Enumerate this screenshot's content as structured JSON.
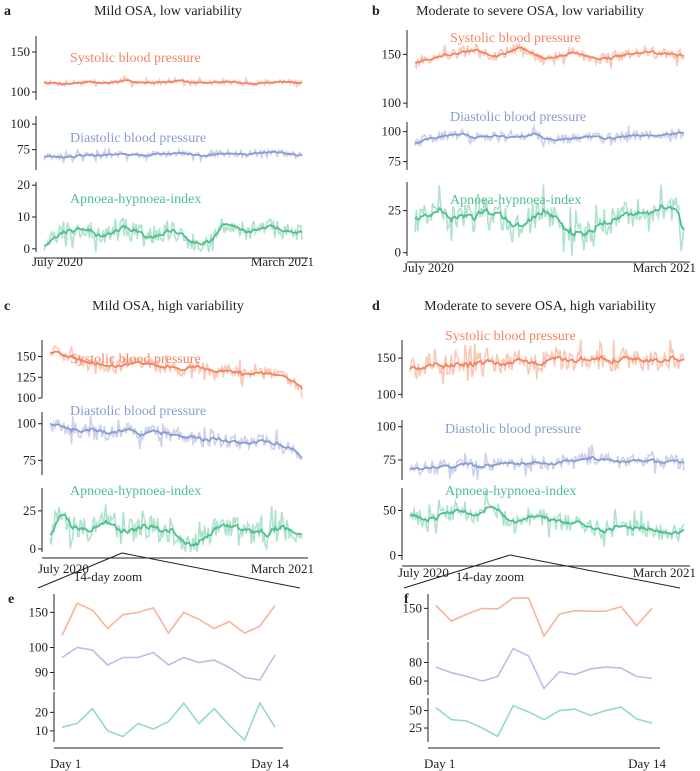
{
  "colors": {
    "sbp": "#f4845f",
    "dbp": "#8b9bd1",
    "ahi": "#4fc08d",
    "sbp_light": "#f7b49a",
    "dbp_light": "#b7c0e3",
    "ahi_light": "#94dcb6"
  },
  "series_labels": {
    "sbp": "Systolic blood pressure",
    "dbp": "Diastolic blood pressure",
    "ahi": "Apnoea-hypnoea-index"
  },
  "zoom_label": "14-day zoom",
  "chart_data": [
    {
      "id": "a",
      "type": "line",
      "title": "Mild OSA, low variability",
      "x_start": "July 2020",
      "x_end": "March 2021",
      "subplots": [
        {
          "series": "sbp",
          "ylim": [
            90,
            170
          ],
          "yticks": [
            100,
            150
          ],
          "mean": [
            112,
            111,
            110,
            112,
            113,
            111,
            112,
            114,
            113,
            111,
            112,
            113,
            115,
            112,
            111,
            112,
            113,
            112,
            110,
            111,
            112,
            113,
            112,
            111
          ],
          "noise": 3
        },
        {
          "series": "dbp",
          "ylim": [
            55,
            108
          ],
          "yticks": [
            75,
            100
          ],
          "mean": [
            68,
            68,
            67,
            69,
            70,
            69,
            70,
            71,
            70,
            69,
            71,
            71,
            72,
            70,
            69,
            70,
            71,
            71,
            70,
            72,
            73,
            72,
            70,
            69
          ],
          "noise": 3
        },
        {
          "series": "ahi",
          "ylim": [
            -1,
            21
          ],
          "yticks": [
            0,
            10,
            20
          ],
          "mean": [
            1,
            4,
            6,
            7,
            6,
            4,
            5,
            7,
            6,
            3,
            4,
            6,
            5,
            2,
            2,
            4,
            9,
            7,
            5,
            6,
            7,
            6,
            5,
            5
          ],
          "noise": 3
        }
      ]
    },
    {
      "id": "b",
      "type": "line",
      "title": "Moderate to severe OSA, low variability",
      "x_start": "July 2020",
      "x_end": "March 2021",
      "subplots": [
        {
          "series": "sbp",
          "ylim": [
            95,
            175
          ],
          "yticks": [
            100,
            150
          ],
          "mean": [
            142,
            145,
            148,
            150,
            152,
            155,
            150,
            148,
            153,
            158,
            150,
            146,
            148,
            152,
            150,
            147,
            145,
            148,
            150,
            152,
            153,
            150,
            151,
            148
          ],
          "noise": 6
        },
        {
          "series": "dbp",
          "ylim": [
            68,
            108
          ],
          "yticks": [
            75,
            100
          ],
          "mean": [
            90,
            94,
            96,
            97,
            98,
            95,
            96,
            97,
            94,
            96,
            98,
            95,
            93,
            94,
            95,
            96,
            94,
            95,
            96,
            97,
            96,
            98,
            99,
            100
          ],
          "noise": 4
        },
        {
          "series": "ahi",
          "ylim": [
            -2,
            42
          ],
          "yticks": [
            0,
            25
          ],
          "mean": [
            20,
            22,
            24,
            21,
            22,
            20,
            25,
            23,
            18,
            16,
            22,
            24,
            20,
            12,
            10,
            14,
            18,
            20,
            22,
            24,
            25,
            27,
            26,
            12
          ],
          "noise": 8
        }
      ]
    },
    {
      "id": "c",
      "type": "line",
      "title": "Mild OSA, high variability",
      "x_start": "July 2020",
      "x_end": "March 2021",
      "subplots": [
        {
          "series": "sbp",
          "ylim": [
            100,
            170
          ],
          "yticks": [
            100,
            125,
            150
          ],
          "mean": [
            155,
            152,
            148,
            145,
            142,
            140,
            138,
            140,
            142,
            140,
            138,
            137,
            135,
            140,
            135,
            133,
            132,
            130,
            128,
            130,
            128,
            125,
            120,
            112
          ],
          "noise": 8
        },
        {
          "series": "dbp",
          "ylim": [
            65,
            108
          ],
          "yticks": [
            75,
            100
          ],
          "mean": [
            100,
            98,
            96,
            95,
            96,
            94,
            95,
            96,
            93,
            94,
            95,
            92,
            90,
            92,
            88,
            90,
            88,
            87,
            86,
            88,
            87,
            85,
            83,
            75
          ],
          "noise": 5
        },
        {
          "series": "ahi",
          "ylim": [
            -2,
            40
          ],
          "yticks": [
            0,
            25
          ],
          "mean": [
            10,
            25,
            15,
            12,
            14,
            16,
            12,
            10,
            14,
            15,
            12,
            13,
            5,
            2,
            6,
            14,
            16,
            14,
            12,
            10,
            10,
            14,
            12,
            10
          ],
          "noise": 8
        }
      ]
    },
    {
      "id": "d",
      "type": "line",
      "title": "Moderate to severe OSA, high variability",
      "x_start": "July 2020",
      "x_end": "March 2021",
      "subplots": [
        {
          "series": "sbp",
          "ylim": [
            95,
            175
          ],
          "yticks": [
            100,
            150
          ],
          "mean": [
            135,
            138,
            140,
            142,
            140,
            138,
            145,
            143,
            140,
            148,
            145,
            143,
            150,
            147,
            145,
            150,
            148,
            145,
            150,
            148,
            147,
            146,
            150,
            145
          ],
          "noise": 14
        },
        {
          "series": "dbp",
          "ylim": [
            60,
            105
          ],
          "yticks": [
            75,
            100
          ],
          "mean": [
            68,
            69,
            70,
            70,
            71,
            72,
            70,
            71,
            73,
            72,
            74,
            73,
            72,
            75,
            74,
            76,
            75,
            74,
            73,
            75,
            74,
            73,
            74,
            73
          ],
          "noise": 5
        },
        {
          "series": "ahi",
          "ylim": [
            -5,
            75
          ],
          "yticks": [
            0,
            50
          ],
          "mean": [
            45,
            40,
            42,
            48,
            50,
            45,
            48,
            55,
            40,
            38,
            45,
            42,
            40,
            35,
            38,
            30,
            28,
            30,
            32,
            28,
            30,
            26,
            25,
            28
          ],
          "noise": 10
        }
      ]
    },
    {
      "id": "e",
      "type": "line",
      "title": "",
      "x_start": "Day 1",
      "x_end": "Day 14",
      "subplots": [
        {
          "series": "sbp_light",
          "ylim": [
            138,
            158
          ],
          "yticks": [
            150
          ],
          "values": [
            140,
            154,
            151,
            143,
            149,
            150,
            152,
            141,
            150,
            147,
            143,
            146,
            141,
            144,
            153
          ]
        },
        {
          "series": "dbp_light",
          "ylim": [
            83,
            103
          ],
          "yticks": [
            90,
            100
          ],
          "values": [
            96,
            100,
            99,
            93,
            96,
            96,
            98,
            93,
            96,
            94,
            95,
            92,
            88,
            87,
            97
          ]
        },
        {
          "series": "ahi_light",
          "ylim": [
            4,
            31
          ],
          "yticks": [
            10,
            20
          ],
          "values": [
            12,
            14,
            22,
            10,
            7,
            14,
            11,
            15,
            25,
            14,
            22,
            13,
            5,
            25,
            12
          ]
        }
      ]
    },
    {
      "id": "f",
      "type": "line",
      "title": "",
      "x_start": "Day 1",
      "x_end": "Day 14",
      "subplots": [
        {
          "series": "sbp_light",
          "ylim": [
            95,
            175
          ],
          "yticks": [
            150
          ],
          "values": [
            155,
            128,
            140,
            150,
            149,
            168,
            168,
            102,
            140,
            146,
            145,
            145,
            153,
            120,
            150
          ]
        },
        {
          "series": "dbp_light",
          "ylim": [
            45,
            102
          ],
          "yticks": [
            60,
            80
          ],
          "values": [
            75,
            69,
            65,
            60,
            65,
            95,
            87,
            52,
            70,
            67,
            73,
            75,
            74,
            65,
            63
          ]
        },
        {
          "series": "ahi_light",
          "ylim": [
            5,
            68
          ],
          "yticks": [
            25,
            50
          ],
          "values": [
            54,
            37,
            35,
            25,
            13,
            57,
            48,
            37,
            50,
            52,
            43,
            50,
            55,
            38,
            32
          ]
        }
      ]
    }
  ]
}
